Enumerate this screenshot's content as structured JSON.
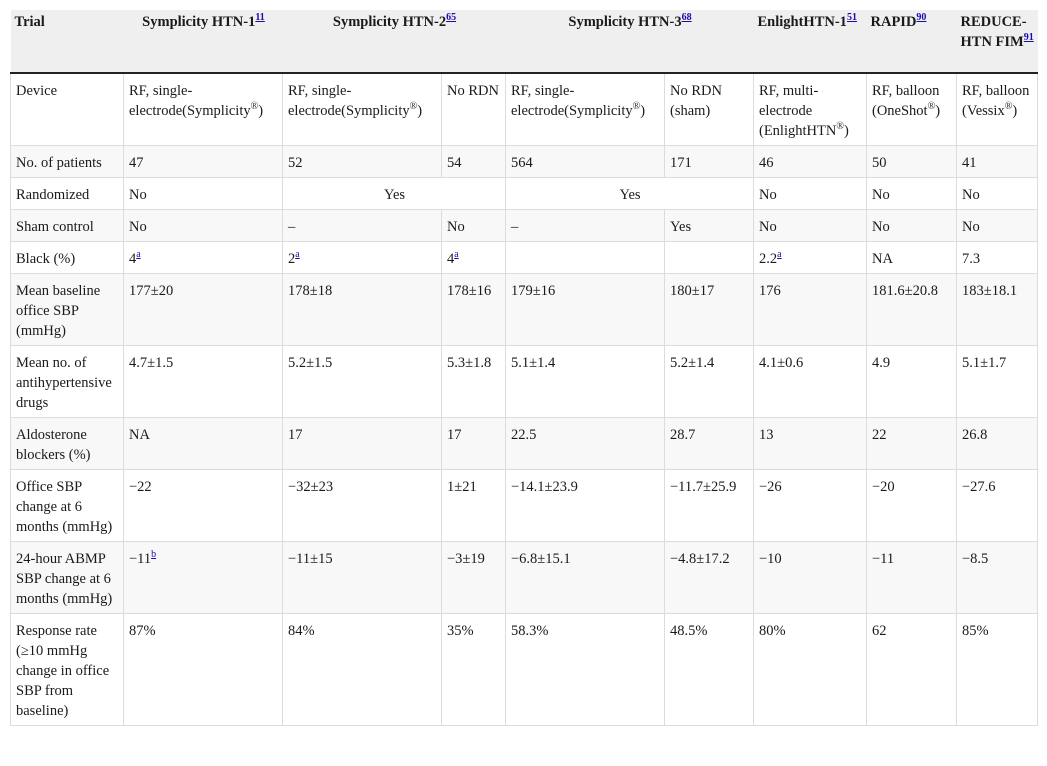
{
  "header": {
    "trial": "Trial",
    "htn1": "Symplicity HTN-1",
    "htn1_ref": "11",
    "htn2": "Symplicity HTN-2",
    "htn2_ref": "65",
    "htn3": "Symplicity HTN-3",
    "htn3_ref": "68",
    "enlight": "EnlightHTN-1",
    "enlight_ref": "51",
    "rapid": "RAPID",
    "rapid_ref": "90",
    "reduce": "REDUCE-HTN FIM",
    "reduce_ref": "91"
  },
  "rows": {
    "device": {
      "label": "Device",
      "htn1_pre": "RF, single-electrode(Symplicity",
      "htn1_post": ")",
      "htn2_pre": "RF, single-electrode(Symplicity",
      "htn2_post": ")",
      "htn2_ctrl": "No RDN",
      "htn3_pre": "RF, single-electrode(Symplicity",
      "htn3_post": ")",
      "htn3_ctrl": "No RDN (sham)",
      "enlight_pre": "RF, multi-electrode (EnlightHTN",
      "enlight_post": ")",
      "rapid_pre": "RF, balloon (OneShot",
      "rapid_post": ")",
      "reduce_pre": "RF, balloon (Vessix",
      "reduce_post": ")",
      "reg": "®"
    },
    "patients": {
      "label": "No. of patients",
      "htn1": "47",
      "htn2": "52",
      "htn2_ctrl": "54",
      "htn3": "564",
      "htn3_ctrl": "171",
      "enlight": "46",
      "rapid": "50",
      "reduce": "41"
    },
    "randomized": {
      "label": "Randomized",
      "htn1": "No",
      "htn2": "Yes",
      "htn3": "Yes",
      "enlight": "No",
      "rapid": "No",
      "reduce": "No"
    },
    "sham": {
      "label": "Sham control",
      "htn1": "No",
      "htn2": "–",
      "htn2_ctrl": "No",
      "htn3": "–",
      "htn3_ctrl": "Yes",
      "enlight": "No",
      "rapid": "No",
      "reduce": "No"
    },
    "black": {
      "label": "Black (%)",
      "htn1": "4",
      "htn2": "2",
      "htn2_ctrl": "4",
      "htn3": "",
      "htn3_ctrl": "",
      "enlight": "2.2",
      "rapid": "NA",
      "reduce": "7.3",
      "note": "a"
    },
    "baseline": {
      "label": "Mean baseline office SBP (mmHg)",
      "htn1": "177±20",
      "htn2": "178±18",
      "htn2_ctrl": "178±16",
      "htn3": "179±16",
      "htn3_ctrl": "180±17",
      "enlight": "176",
      "rapid": "181.6±20.8",
      "reduce": "183±18.1"
    },
    "drugs": {
      "label": "Mean no. of antihypertensive drugs",
      "htn1": "4.7±1.5",
      "htn2": "5.2±1.5",
      "htn2_ctrl": "5.3±1.8",
      "htn3": "5.1±1.4",
      "htn3_ctrl": "5.2±1.4",
      "enlight": "4.1±0.6",
      "rapid": "4.9",
      "reduce": "5.1±1.7"
    },
    "aldo": {
      "label": "Aldosterone blockers (%)",
      "htn1": "NA",
      "htn2": "17",
      "htn2_ctrl": "17",
      "htn3": "22.5",
      "htn3_ctrl": "28.7",
      "enlight": "13",
      "rapid": "22",
      "reduce": "26.8"
    },
    "office": {
      "label": "Office SBP change at 6 months (mmHg)",
      "htn1": "−22",
      "htn2": "−32±23",
      "htn2_ctrl": "1±21",
      "htn3": "−14.1±23.9",
      "htn3_ctrl": "−11.7±25.9",
      "enlight": "−26",
      "rapid": "−20",
      "reduce": "−27.6"
    },
    "abpm": {
      "label": "24-hour ABMP SBP change at 6 months (mmHg)",
      "htn1": "−11",
      "htn1_note": "b",
      "htn2": "−11±15",
      "htn2_ctrl": "−3±19",
      "htn3": "−6.8±15.1",
      "htn3_ctrl": "−4.8±17.2",
      "enlight": "−10",
      "rapid": "−11",
      "reduce": "−8.5"
    },
    "response": {
      "label": "Response rate (≥10 mmHg change in office SBP from baseline)",
      "htn1": "87%",
      "htn2": "84%",
      "htn2_ctrl": "35%",
      "htn3": "58.3%",
      "htn3_ctrl": "48.5%",
      "enlight": "80%",
      "rapid": "62",
      "reduce": "85%"
    }
  }
}
